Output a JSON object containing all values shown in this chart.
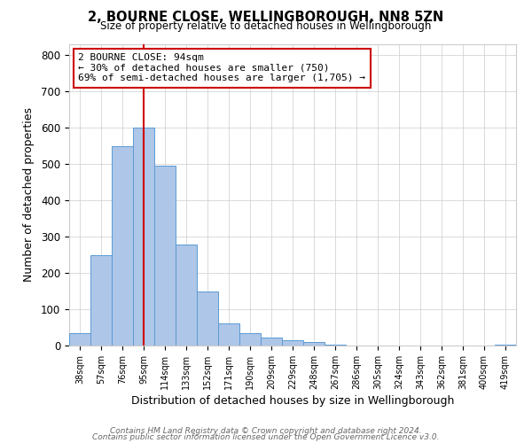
{
  "title": "2, BOURNE CLOSE, WELLINGBOROUGH, NN8 5ZN",
  "subtitle": "Size of property relative to detached houses in Wellingborough",
  "xlabel": "Distribution of detached houses by size in Wellingborough",
  "ylabel": "Number of detached properties",
  "bin_labels": [
    "38sqm",
    "57sqm",
    "76sqm",
    "95sqm",
    "114sqm",
    "133sqm",
    "152sqm",
    "171sqm",
    "190sqm",
    "209sqm",
    "229sqm",
    "248sqm",
    "267sqm",
    "286sqm",
    "305sqm",
    "324sqm",
    "343sqm",
    "362sqm",
    "381sqm",
    "400sqm",
    "419sqm"
  ],
  "bar_values": [
    35,
    250,
    550,
    600,
    495,
    278,
    148,
    60,
    35,
    22,
    15,
    10,
    2,
    1,
    1,
    1,
    1,
    1,
    0,
    0,
    2
  ],
  "bin_edges": [
    28.5,
    47.5,
    66.5,
    85.5,
    104.5,
    123.5,
    142.5,
    161.5,
    180.5,
    199.5,
    218.5,
    237.5,
    256.5,
    275.5,
    294.5,
    313.5,
    332.5,
    351.5,
    370.5,
    389.5,
    408.5,
    427.5
  ],
  "bar_color": "#aec6e8",
  "bar_edge_color": "#5b9bd5",
  "vline_color": "#cc0000",
  "vline_x": 95,
  "annotation_line1": "2 BOURNE CLOSE: 94sqm",
  "annotation_line2": "← 30% of detached houses are smaller (750)",
  "annotation_line3": "69% of semi-detached houses are larger (1,705) →",
  "annotation_box_edge": "#cc0000",
  "ylim": [
    0,
    830
  ],
  "yticks": [
    0,
    100,
    200,
    300,
    400,
    500,
    600,
    700,
    800
  ],
  "footer1": "Contains HM Land Registry data © Crown copyright and database right 2024.",
  "footer2": "Contains public sector information licensed under the Open Government Licence v3.0.",
  "background_color": "#ffffff",
  "grid_color": "#cccccc"
}
